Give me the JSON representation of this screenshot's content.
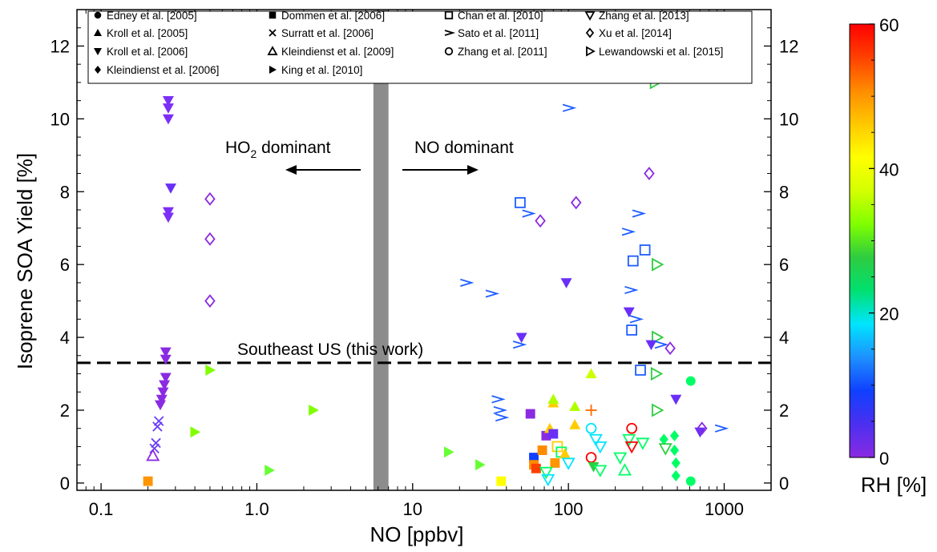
{
  "chart_data": {
    "type": "scatter",
    "xlabel": "NO [ppbv]",
    "ylabel": "Isoprene SOA Yield  [%]",
    "xscale": "log",
    "xlim": [
      0.07,
      2000
    ],
    "ylim": [
      -0.2,
      13
    ],
    "xticks": [
      {
        "value": 0.1,
        "label": "0.1"
      },
      {
        "value": 1,
        "label": "1.0"
      },
      {
        "value": 10,
        "label": "10"
      },
      {
        "value": 100,
        "label": "100"
      },
      {
        "value": 1000,
        "label": "1000"
      }
    ],
    "yticks": [
      {
        "value": 0,
        "label": "0"
      },
      {
        "value": 2,
        "label": "2"
      },
      {
        "value": 4,
        "label": "4"
      },
      {
        "value": 6,
        "label": "6"
      },
      {
        "value": 8,
        "label": "8"
      },
      {
        "value": 10,
        "label": "10"
      },
      {
        "value": 12,
        "label": "12"
      }
    ],
    "legend_placement": "top",
    "legend": [
      {
        "symbol": "circle-filled",
        "label": "Edney et al. [2005]"
      },
      {
        "symbol": "triangle-up-filled",
        "label": "Kroll et al. [2005]"
      },
      {
        "symbol": "triangle-down-filled",
        "label": "Kroll et al. [2006]"
      },
      {
        "symbol": "diamond-filled",
        "label": "Kleindienst et al. [2006]"
      },
      {
        "symbol": "square-filled",
        "label": "Dommen et al. [2006]"
      },
      {
        "symbol": "x",
        "label": "Surratt et al. [2006]"
      },
      {
        "symbol": "triangle-up-open",
        "label": "Kleindienst et al. [2009]"
      },
      {
        "symbol": "triangle-right-filled",
        "label": "King et al. [2010]"
      },
      {
        "symbol": "square-open",
        "label": "Chan et al. [2010]"
      },
      {
        "symbol": "chevron",
        "label": "Sato et al. [2011]"
      },
      {
        "symbol": "circle-open",
        "label": "Zhang et al. [2011]"
      },
      {
        "symbol": "triangle-down-open",
        "label": "Zhang et al. [2013]"
      },
      {
        "symbol": "diamond-open",
        "label": "Xu et al. [2014]"
      },
      {
        "symbol": "triangle-right-open",
        "label": "Lewandowski et al. [2015]"
      }
    ],
    "shaded_band": {
      "x": [
        5.6,
        7.0
      ]
    },
    "reference_line": {
      "y": 3.3,
      "label": "Southeast US (this work)"
    },
    "annotations": [
      {
        "text_main": "HO",
        "text_sub": "2",
        "text_rest": " dominant",
        "direction": "left",
        "x": 0.92,
        "y": 8.7
      },
      {
        "text_main": "NO dominant",
        "direction": "right",
        "x": 12.5,
        "y": 8.7
      }
    ],
    "colorbar": {
      "label": "RH [%]",
      "min": 0,
      "max": 60,
      "ticks": [
        0,
        20,
        40,
        60
      ],
      "stops": [
        "#8a2be2",
        "#4b2ff0",
        "#1040ff",
        "#1e90ff",
        "#00e5ff",
        "#00e070",
        "#2ecc40",
        "#7fff00",
        "#d4ff00",
        "#ffff00",
        "#ffc800",
        "#ff8c00",
        "#ff4000",
        "#ff0000"
      ]
    },
    "points": [
      {
        "x": 0.27,
        "y": 10.5,
        "m": "tri-down-f",
        "c": "#7b2ff7"
      },
      {
        "x": 0.27,
        "y": 10.3,
        "m": "tri-down-f",
        "c": "#7b2ff7"
      },
      {
        "x": 0.27,
        "y": 10.0,
        "m": "tri-down-f",
        "c": "#7b2ff7"
      },
      {
        "x": 0.28,
        "y": 8.1,
        "m": "tri-down-f",
        "c": "#6a2ff7"
      },
      {
        "x": 0.27,
        "y": 7.45,
        "m": "tri-down-f",
        "c": "#7b2ff7"
      },
      {
        "x": 0.27,
        "y": 7.3,
        "m": "tri-down-f",
        "c": "#7b2ff7"
      },
      {
        "x": 0.26,
        "y": 3.6,
        "m": "tri-down-f",
        "c": "#8a2be2"
      },
      {
        "x": 0.26,
        "y": 3.4,
        "m": "tri-down-f",
        "c": "#8a2be2"
      },
      {
        "x": 0.26,
        "y": 2.9,
        "m": "tri-down-f",
        "c": "#8a2be2"
      },
      {
        "x": 0.255,
        "y": 2.7,
        "m": "tri-down-f",
        "c": "#8a2be2"
      },
      {
        "x": 0.25,
        "y": 2.5,
        "m": "tri-down-f",
        "c": "#8a2be2"
      },
      {
        "x": 0.245,
        "y": 2.3,
        "m": "tri-down-f",
        "c": "#8a2be2"
      },
      {
        "x": 0.24,
        "y": 2.15,
        "m": "tri-down-f",
        "c": "#8a2be2"
      },
      {
        "x": 0.235,
        "y": 1.7,
        "m": "x",
        "c": "#6a3ff7"
      },
      {
        "x": 0.23,
        "y": 1.55,
        "m": "x",
        "c": "#6a3ff7"
      },
      {
        "x": 0.225,
        "y": 1.1,
        "m": "x",
        "c": "#6a3ff7"
      },
      {
        "x": 0.22,
        "y": 0.95,
        "m": "x",
        "c": "#6a3ff7"
      },
      {
        "x": 0.215,
        "y": 0.75,
        "m": "tri-up-o",
        "c": "#8a2be2"
      },
      {
        "x": 0.2,
        "y": 0.05,
        "m": "sq-f",
        "c": "#ff9500"
      },
      {
        "x": 0.5,
        "y": 7.8,
        "m": "dia-o",
        "c": "#8a2be2"
      },
      {
        "x": 0.5,
        "y": 6.7,
        "m": "dia-o",
        "c": "#8a2be2"
      },
      {
        "x": 0.5,
        "y": 5.0,
        "m": "dia-o",
        "c": "#8a2be2"
      },
      {
        "x": 0.5,
        "y": 3.1,
        "m": "tri-right-f",
        "c": "#7fff00"
      },
      {
        "x": 0.4,
        "y": 1.4,
        "m": "tri-right-f",
        "c": "#7fff00"
      },
      {
        "x": 1.2,
        "y": 0.35,
        "m": "tri-right-f",
        "c": "#66ff33"
      },
      {
        "x": 2.3,
        "y": 2.0,
        "m": "tri-right-f",
        "c": "#7fff00"
      },
      {
        "x": 17,
        "y": 0.85,
        "m": "tri-right-f",
        "c": "#66ff33"
      },
      {
        "x": 27,
        "y": 0.5,
        "m": "tri-right-f",
        "c": "#66ff33"
      },
      {
        "x": 37,
        "y": 0.05,
        "m": "sq-f",
        "c": "#ffff00"
      },
      {
        "x": 49,
        "y": 7.7,
        "m": "sq-o",
        "c": "#1e5eff"
      },
      {
        "x": 55,
        "y": 7.4,
        "m": "chev",
        "c": "#1e5eff"
      },
      {
        "x": 66,
        "y": 7.2,
        "m": "dia-o",
        "c": "#8a2be2"
      },
      {
        "x": 112,
        "y": 7.7,
        "m": "dia-o",
        "c": "#8a2be2"
      },
      {
        "x": 100,
        "y": 10.3,
        "m": "chev",
        "c": "#1e5eff"
      },
      {
        "x": 22,
        "y": 5.5,
        "m": "chev",
        "c": "#1e5eff"
      },
      {
        "x": 32,
        "y": 5.2,
        "m": "chev",
        "c": "#1e5eff"
      },
      {
        "x": 97,
        "y": 5.5,
        "m": "tri-down-f",
        "c": "#6a2ff7"
      },
      {
        "x": 50,
        "y": 4.0,
        "m": "tri-down-f",
        "c": "#6a2ff7"
      },
      {
        "x": 48,
        "y": 3.8,
        "m": "chev",
        "c": "#1e5eff"
      },
      {
        "x": 35,
        "y": 2.3,
        "m": "chev",
        "c": "#1e5eff"
      },
      {
        "x": 36,
        "y": 2.0,
        "m": "chev",
        "c": "#1e5eff"
      },
      {
        "x": 37,
        "y": 1.8,
        "m": "chev",
        "c": "#1e5eff"
      },
      {
        "x": 57,
        "y": 1.9,
        "m": "sq-f",
        "c": "#8a2be2"
      },
      {
        "x": 80,
        "y": 2.2,
        "m": "tri-up-f",
        "c": "#ffcc00"
      },
      {
        "x": 80,
        "y": 2.3,
        "m": "tri-up-f",
        "c": "#b0ff00"
      },
      {
        "x": 110,
        "y": 2.1,
        "m": "tri-up-f",
        "c": "#b0ff00"
      },
      {
        "x": 140,
        "y": 3.0,
        "m": "tri-up-f",
        "c": "#ccff00"
      },
      {
        "x": 110,
        "y": 1.6,
        "m": "tri-up-f",
        "c": "#ffcc00"
      },
      {
        "x": 140,
        "y": 2.0,
        "m": "plus",
        "c": "#ff6a00"
      },
      {
        "x": 60,
        "y": 0.7,
        "m": "sq-f",
        "c": "#1040ff"
      },
      {
        "x": 60,
        "y": 0.5,
        "m": "sq-f",
        "c": "#ff8c00"
      },
      {
        "x": 62,
        "y": 0.4,
        "m": "sq-f",
        "c": "#ff4000"
      },
      {
        "x": 68,
        "y": 0.9,
        "m": "sq-f",
        "c": "#ff8c00"
      },
      {
        "x": 72,
        "y": 1.3,
        "m": "sq-f",
        "c": "#8a2be2"
      },
      {
        "x": 76,
        "y": 1.5,
        "m": "tri-up-f",
        "c": "#ffcc00"
      },
      {
        "x": 80,
        "y": 1.35,
        "m": "sq-f",
        "c": "#6a2ff7"
      },
      {
        "x": 82,
        "y": 0.55,
        "m": "sq-f",
        "c": "#ff9500"
      },
      {
        "x": 85,
        "y": 1.0,
        "m": "sq-o",
        "c": "#ffcc00"
      },
      {
        "x": 90,
        "y": 0.85,
        "m": "sq-o",
        "c": "#00ff66"
      },
      {
        "x": 95,
        "y": 0.8,
        "m": "tri-up-f",
        "c": "#ffcc00"
      },
      {
        "x": 72,
        "y": 0.3,
        "m": "tri-down-o",
        "c": "#00ff66"
      },
      {
        "x": 74,
        "y": 0.1,
        "m": "tri-down-o",
        "c": "#00e5ff"
      },
      {
        "x": 100,
        "y": 0.55,
        "m": "tri-down-o",
        "c": "#00e5ff"
      },
      {
        "x": 140,
        "y": 1.5,
        "m": "circ-o",
        "c": "#00e5ff"
      },
      {
        "x": 140,
        "y": 0.7,
        "m": "circ-o",
        "c": "#ff0000"
      },
      {
        "x": 150,
        "y": 1.2,
        "m": "tri-down-o",
        "c": "#00e5ff"
      },
      {
        "x": 160,
        "y": 1.0,
        "m": "tri-down-o",
        "c": "#00e5ff"
      },
      {
        "x": 145,
        "y": 0.45,
        "m": "tri-down-f",
        "c": "#2ecc40"
      },
      {
        "x": 160,
        "y": 0.35,
        "m": "tri-down-o",
        "c": "#00ff66"
      },
      {
        "x": 215,
        "y": 0.7,
        "m": "tri-down-o",
        "c": "#00ff66"
      },
      {
        "x": 230,
        "y": 0.35,
        "m": "tri-up-o",
        "c": "#00ff66"
      },
      {
        "x": 245,
        "y": 1.2,
        "m": "tri-down-o",
        "c": "#00ff66"
      },
      {
        "x": 255,
        "y": 1.0,
        "m": "tri-down-o",
        "c": "#ff0000"
      },
      {
        "x": 255,
        "y": 1.5,
        "m": "circ-o",
        "c": "#ff0000"
      },
      {
        "x": 300,
        "y": 1.1,
        "m": "tri-down-o",
        "c": "#00ff66"
      },
      {
        "x": 240,
        "y": 6.9,
        "m": "chev",
        "c": "#1e5eff"
      },
      {
        "x": 280,
        "y": 7.4,
        "m": "chev",
        "c": "#1e5eff"
      },
      {
        "x": 250,
        "y": 5.3,
        "m": "chev",
        "c": "#1e5eff"
      },
      {
        "x": 270,
        "y": 4.5,
        "m": "chev",
        "c": "#1e5eff"
      },
      {
        "x": 245,
        "y": 4.7,
        "m": "tri-down-f",
        "c": "#6a2ff7"
      },
      {
        "x": 260,
        "y": 6.1,
        "m": "sq-o",
        "c": "#1e5eff"
      },
      {
        "x": 310,
        "y": 6.4,
        "m": "sq-o",
        "c": "#1e5eff"
      },
      {
        "x": 255,
        "y": 4.2,
        "m": "sq-o",
        "c": "#1e5eff"
      },
      {
        "x": 290,
        "y": 3.1,
        "m": "sq-o",
        "c": "#1e5eff"
      },
      {
        "x": 330,
        "y": 8.5,
        "m": "dia-o",
        "c": "#8a2be2"
      },
      {
        "x": 360,
        "y": 11.0,
        "m": "tri-right-o",
        "c": "#2ecc40"
      },
      {
        "x": 370,
        "y": 6.0,
        "m": "tri-right-o",
        "c": "#2ecc40"
      },
      {
        "x": 370,
        "y": 4.0,
        "m": "tri-right-o",
        "c": "#2ecc40"
      },
      {
        "x": 365,
        "y": 3.0,
        "m": "tri-right-o",
        "c": "#2ecc40"
      },
      {
        "x": 370,
        "y": 2.0,
        "m": "tri-right-o",
        "c": "#2ecc40"
      },
      {
        "x": 340,
        "y": 3.8,
        "m": "tri-down-f",
        "c": "#6a2ff7"
      },
      {
        "x": 390,
        "y": 3.8,
        "m": "chev",
        "c": "#1e5eff"
      },
      {
        "x": 450,
        "y": 3.7,
        "m": "dia-o",
        "c": "#8a2be2"
      },
      {
        "x": 490,
        "y": 2.3,
        "m": "tri-down-f",
        "c": "#6a2ff7"
      },
      {
        "x": 610,
        "y": 2.8,
        "m": "circ-f",
        "c": "#00ff66"
      },
      {
        "x": 410,
        "y": 1.2,
        "m": "dia-f",
        "c": "#00ff66"
      },
      {
        "x": 480,
        "y": 1.3,
        "m": "dia-f",
        "c": "#00ff66"
      },
      {
        "x": 480,
        "y": 0.9,
        "m": "dia-f",
        "c": "#00ff66"
      },
      {
        "x": 420,
        "y": 0.95,
        "m": "tri-down-o",
        "c": "#2ecc40"
      },
      {
        "x": 490,
        "y": 0.55,
        "m": "dia-f",
        "c": "#00ff66"
      },
      {
        "x": 490,
        "y": 0.2,
        "m": "dia-f",
        "c": "#00ff66"
      },
      {
        "x": 610,
        "y": 0.05,
        "m": "circ-f",
        "c": "#00ff66"
      },
      {
        "x": 700,
        "y": 1.4,
        "m": "tri-down-f",
        "c": "#6a2ff7"
      },
      {
        "x": 720,
        "y": 1.5,
        "m": "dia-o",
        "c": "#8a2be2"
      },
      {
        "x": 950,
        "y": 1.5,
        "m": "chev",
        "c": "#1e5eff"
      }
    ]
  }
}
